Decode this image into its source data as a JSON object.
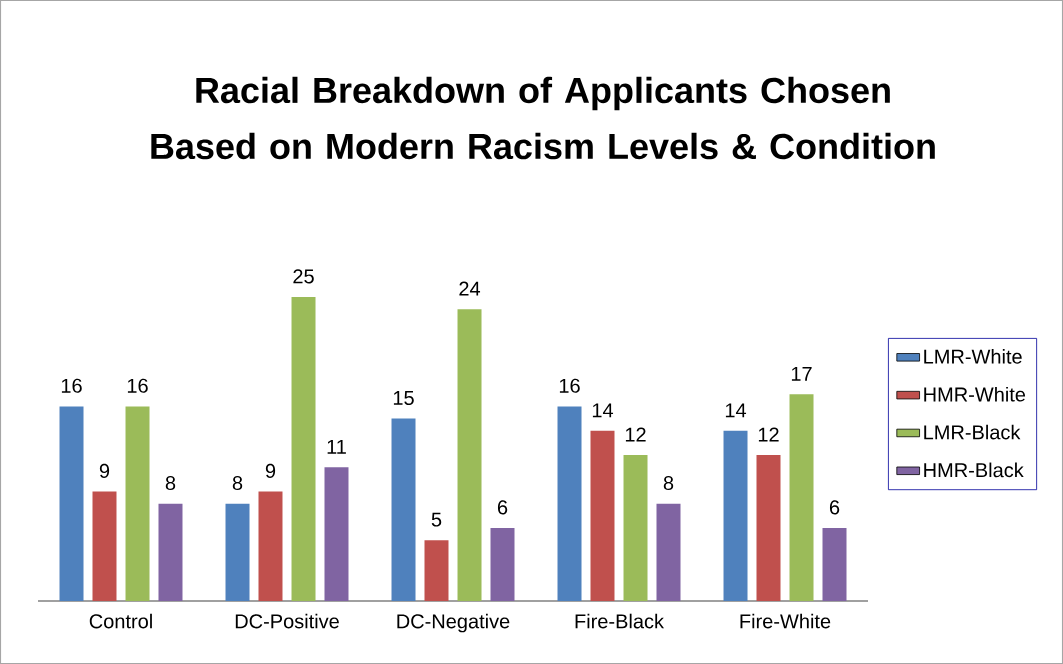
{
  "chart_data": {
    "type": "bar",
    "title": "Racial Breakdown of Applicants Chosen Based on Modern Racism Levels & Condition",
    "categories": [
      "Control",
      "DC-Positive",
      "DC-Negative",
      "Fire-Black",
      "Fire-White"
    ],
    "series": [
      {
        "name": "LMR-White",
        "color": "#4f81bd",
        "values": [
          16,
          8,
          15,
          16,
          14
        ]
      },
      {
        "name": "HMR-White",
        "color": "#c0504d",
        "values": [
          9,
          9,
          5,
          14,
          12
        ]
      },
      {
        "name": "LMR-Black",
        "color": "#9bbb59",
        "values": [
          16,
          25,
          24,
          12,
          17
        ]
      },
      {
        "name": "HMR-Black",
        "color": "#8064a2",
        "values": [
          8,
          11,
          6,
          8,
          6
        ]
      }
    ],
    "data_labels": true,
    "legend": "right",
    "grid": false,
    "tick_labels": "x"
  }
}
